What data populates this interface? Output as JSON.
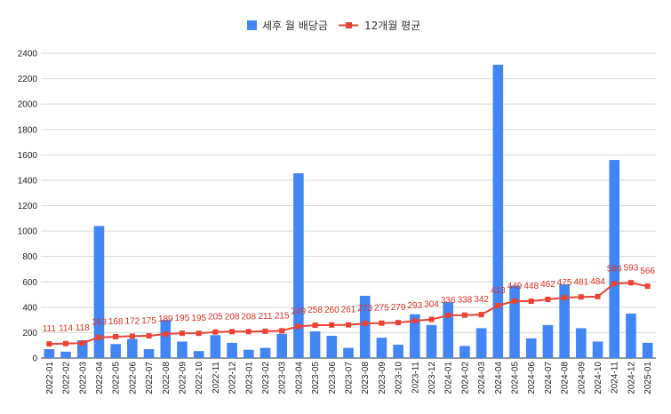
{
  "chart_data": {
    "type": "bar",
    "categories": [
      "2022-01",
      "2022-02",
      "2022-03",
      "2022-04",
      "2022-05",
      "2022-06",
      "2022-07",
      "2022-08",
      "2022-09",
      "2022-10",
      "2022-11",
      "2022-12",
      "2023-01",
      "2023-02",
      "2023-03",
      "2023-04",
      "2023-05",
      "2023-06",
      "2023-07",
      "2023-08",
      "2023-09",
      "2023-10",
      "2023-11",
      "2023-12",
      "2024-01",
      "2024-02",
      "2024-03",
      "2024-04",
      "2024-05",
      "2024-06",
      "2024-07",
      "2024-08",
      "2024-09",
      "2024-10",
      "2024-11",
      "2024-12",
      "2025-01"
    ],
    "series": [
      {
        "name": "세후 월 배당금",
        "kind": "bar",
        "color": "#4285f4",
        "values": [
          70,
          50,
          140,
          1040,
          110,
          150,
          70,
          300,
          130,
          55,
          180,
          120,
          65,
          80,
          190,
          1455,
          210,
          175,
          80,
          490,
          160,
          105,
          345,
          260,
          440,
          95,
          235,
          2310,
          570,
          155,
          260,
          580,
          235,
          130,
          1560,
          350,
          120
        ]
      },
      {
        "name": "12개월 평균",
        "kind": "line",
        "color": "#ea4335",
        "values": [
          111,
          114,
          118,
          163,
          168,
          172,
          175,
          189,
          195,
          195,
          205,
          208,
          208,
          211,
          215,
          249,
          258,
          260,
          261,
          273,
          275,
          279,
          293,
          304,
          336,
          338,
          342,
          413,
          449,
          448,
          462,
          475,
          481,
          484,
          586,
          593,
          566
        ]
      }
    ],
    "y_ticks": [
      "0",
      "200",
      "400",
      "600",
      "800",
      "1000",
      "1200",
      "1400",
      "1600",
      "1800",
      "2000",
      "2200",
      "2400"
    ],
    "ylim": [
      0,
      2400
    ],
    "grid": true,
    "legend_position": "top-center"
  }
}
